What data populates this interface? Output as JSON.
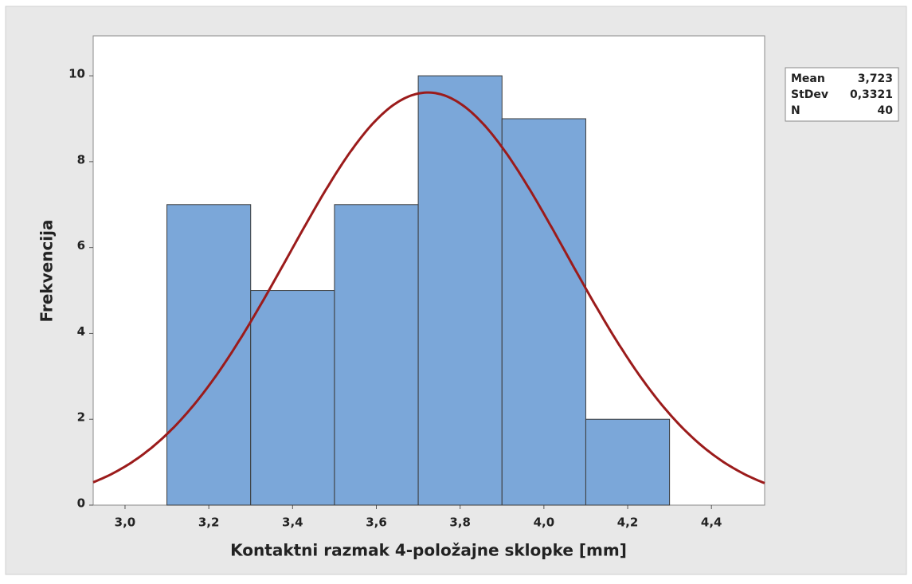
{
  "chart_data": {
    "type": "histogram",
    "xlabel": "Kontaktni razmak 4-položajne sklopke [mm]",
    "ylabel": "Frekvencija",
    "bins": [
      3.1,
      3.3,
      3.5,
      3.7,
      3.9,
      4.1,
      4.3
    ],
    "values": [
      7,
      5,
      7,
      10,
      9,
      2
    ],
    "color": "#7ba7d9",
    "curve_color": "#9b1b1b",
    "xlim": [
      2.924,
      4.527
    ],
    "ylim": [
      0,
      10.93
    ],
    "xticks": [
      {
        "value": 3.0,
        "label": "3,0"
      },
      {
        "value": 3.2,
        "label": "3,2"
      },
      {
        "value": 3.4,
        "label": "3,4"
      },
      {
        "value": 3.6,
        "label": "3,6"
      },
      {
        "value": 3.8,
        "label": "3,8"
      },
      {
        "value": 4.0,
        "label": "4,0"
      },
      {
        "value": 4.2,
        "label": "4,2"
      },
      {
        "value": 4.4,
        "label": "4,4"
      }
    ],
    "yticks": [
      0,
      2,
      4,
      6,
      8,
      10
    ],
    "stats": [
      {
        "name": "Mean",
        "value": 3.723,
        "label": "3,723"
      },
      {
        "name": "StDev",
        "value": 0.3321,
        "label": "0,3321"
      },
      {
        "name": "N",
        "value": 40
      }
    ]
  }
}
